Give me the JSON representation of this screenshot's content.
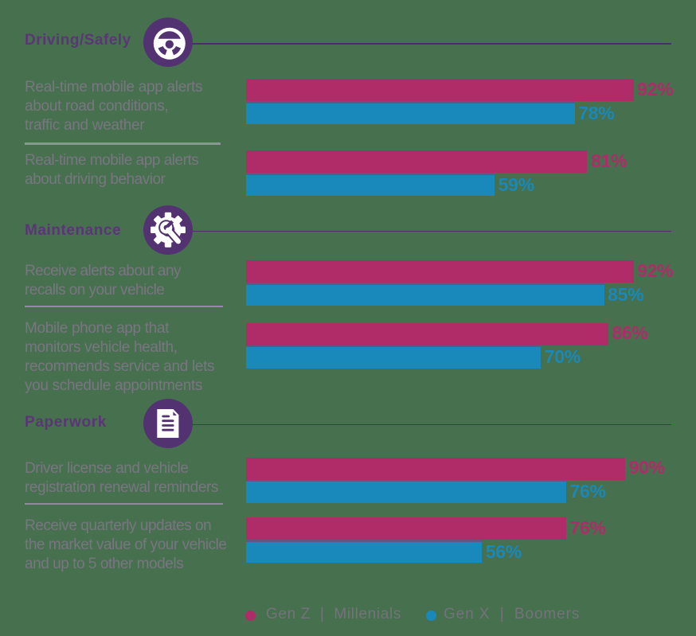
{
  "chart_data": {
    "type": "bar",
    "orientation": "horizontal",
    "unit": "%",
    "axis_max": 100,
    "grid": false,
    "legend_position": "bottom",
    "series_names": [
      "Gen Z | Millenials",
      "Gen X | Boomers"
    ],
    "sections": [
      {
        "title": "Driving/Safely",
        "icon": "steering-wheel-icon",
        "rows": [
          {
            "label": "Real-time mobile app alerts about road conditions, traffic and weather",
            "label_lines": "Real-time mobile app alerts\nabout road conditions,\ntraffic and weather",
            "values": {
              "gen_z_millenials": 92,
              "gen_x_boomers": 78
            },
            "value_labels": [
              "92%",
              "78%"
            ]
          },
          {
            "label": "Real-time mobile app alerts about driving behavior",
            "label_lines": "Real-time mobile app alerts\nabout driving behavior",
            "values": {
              "gen_z_millenials": 81,
              "gen_x_boomers": 59
            },
            "value_labels": [
              "81%",
              "59%"
            ]
          }
        ]
      },
      {
        "title": "Maintenance",
        "icon": "gear-wrench-icon",
        "rows": [
          {
            "label": "Receive alerts about any recalls on your vehicle",
            "label_lines": "Receive alerts about any\nrecalls on your vehicle",
            "values": {
              "gen_z_millenials": 92,
              "gen_x_boomers": 85
            },
            "value_labels": [
              "92%",
              "85%"
            ]
          },
          {
            "label": "Mobile phone app that monitors vehicle health, recommends service and lets you schedule appointments",
            "label_lines": "Mobile phone app that\nmonitors vehicle health,\nrecommends service and lets\nyou schedule appointments",
            "values": {
              "gen_z_millenials": 86,
              "gen_x_boomers": 70
            },
            "value_labels": [
              "86%",
              "70%"
            ]
          }
        ]
      },
      {
        "title": "Paperwork",
        "icon": "document-icon",
        "rows": [
          {
            "label": "Driver license and vehicle registration renewal reminders",
            "label_lines": "Driver license and vehicle\nregistration renewal reminders",
            "values": {
              "gen_z_millenials": 90,
              "gen_x_boomers": 76
            },
            "value_labels": [
              "90%",
              "76%"
            ]
          },
          {
            "label": "Receive quarterly updates on the market value of your vehicle and up to 5 other models",
            "label_lines": "Receive quarterly updates on\nthe market value of your vehicle\nand up to 5 other models",
            "values": {
              "gen_z_millenials": 76,
              "gen_x_boomers": 56
            },
            "value_labels": [
              "76%",
              "56%"
            ]
          }
        ]
      }
    ],
    "legend": [
      {
        "label": "Gen Z  |  Millenials",
        "color": "#AF2C68"
      },
      {
        "label": "Gen X  |  Boomers",
        "color": "#1988BA"
      }
    ]
  },
  "colors": {
    "background": "#47704F",
    "gen_z_bar": "#AF2C68",
    "gen_x_bar": "#1988BA",
    "icon_badge": "#533272",
    "header_line": "#4E2D6C",
    "header_text": "#5C3579",
    "row_label_text": "#787680",
    "legend_text": "#74727B",
    "divider_1": "#8F929B",
    "divider_2": "#9C86AF",
    "divider_3": "#8F8B9D"
  }
}
